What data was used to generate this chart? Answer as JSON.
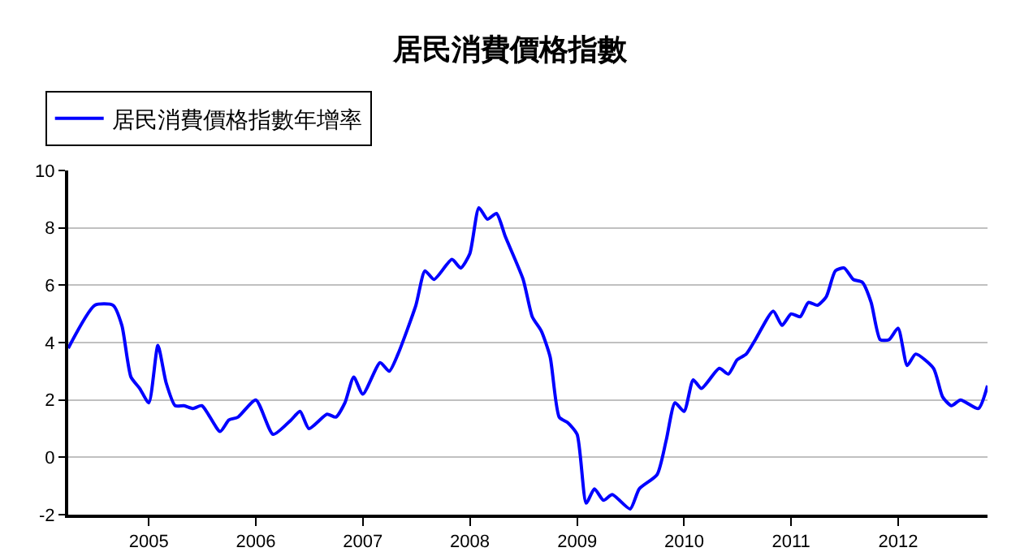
{
  "chart_data": {
    "type": "line",
    "title": "居民消費價格指數",
    "legend": "top left",
    "grid": "y",
    "marker": "none",
    "line_style": "solid",
    "x": [
      "2004-04",
      "2004-07",
      "2004-09",
      "2004-10",
      "2004-11",
      "2004-12",
      "2005-01",
      "2005-02",
      "2005-03",
      "2005-04",
      "2005-05",
      "2005-06",
      "2005-07",
      "2005-09",
      "2005-10",
      "2005-11",
      "2006-01",
      "2006-03",
      "2006-05",
      "2006-06",
      "2006-07",
      "2006-09",
      "2006-10",
      "2006-11",
      "2006-12",
      "2007-01",
      "2007-03",
      "2007-04",
      "2007-05",
      "2007-07",
      "2007-08",
      "2007-09",
      "2007-11",
      "2007-12",
      "2008-01",
      "2008-02",
      "2008-03",
      "2008-04",
      "2008-05",
      "2008-07",
      "2008-08",
      "2008-09",
      "2008-10",
      "2008-11",
      "2008-12",
      "2009-01",
      "2009-02",
      "2009-03",
      "2009-04",
      "2009-05",
      "2009-07",
      "2009-08",
      "2009-10",
      "2009-11",
      "2009-12",
      "2010-01",
      "2010-02",
      "2010-03",
      "2010-05",
      "2010-06",
      "2010-07",
      "2010-08",
      "2010-09",
      "2010-11",
      "2010-12",
      "2011-01",
      "2011-02",
      "2011-03",
      "2011-04",
      "2011-05",
      "2011-06",
      "2011-07",
      "2011-08",
      "2011-09",
      "2011-10",
      "2011-11",
      "2011-12",
      "2012-01",
      "2012-02",
      "2012-03",
      "2012-05",
      "2012-06",
      "2012-07",
      "2012-08",
      "2012-10",
      "2012-11"
    ],
    "series": [
      {
        "name": "居民消費價格指數年增率",
        "color": "#0000ff",
        "values": [
          3.8,
          5.3,
          5.3,
          4.6,
          2.8,
          2.4,
          1.9,
          3.9,
          2.6,
          1.8,
          1.8,
          1.7,
          1.8,
          0.9,
          1.3,
          1.4,
          2.0,
          0.8,
          1.3,
          1.6,
          1.0,
          1.5,
          1.4,
          1.9,
          2.8,
          2.2,
          3.3,
          3.0,
          3.6,
          5.3,
          6.5,
          6.2,
          6.9,
          6.6,
          7.1,
          8.7,
          8.3,
          8.5,
          7.7,
          6.2,
          4.9,
          4.4,
          3.5,
          1.4,
          1.2,
          0.8,
          -1.6,
          -1.1,
          -1.5,
          -1.3,
          -1.8,
          -1.1,
          -0.6,
          0.6,
          1.9,
          1.6,
          2.7,
          2.4,
          3.1,
          2.9,
          3.4,
          3.6,
          4.1,
          5.1,
          4.6,
          5.0,
          4.9,
          5.4,
          5.3,
          5.6,
          6.5,
          6.6,
          6.2,
          6.1,
          5.4,
          4.1,
          4.1,
          4.5,
          3.2,
          3.6,
          3.1,
          2.1,
          1.8,
          2.0,
          1.7,
          2.5
        ]
      }
    ],
    "xlim": [
      "2004-04",
      "2012-11"
    ],
    "xticks": [
      "2005",
      "2006",
      "2007",
      "2008",
      "2009",
      "2010",
      "2011",
      "2012"
    ],
    "ylim": [
      -2,
      10
    ],
    "yticks": [
      -2,
      0,
      2,
      4,
      6,
      8,
      10
    ]
  }
}
